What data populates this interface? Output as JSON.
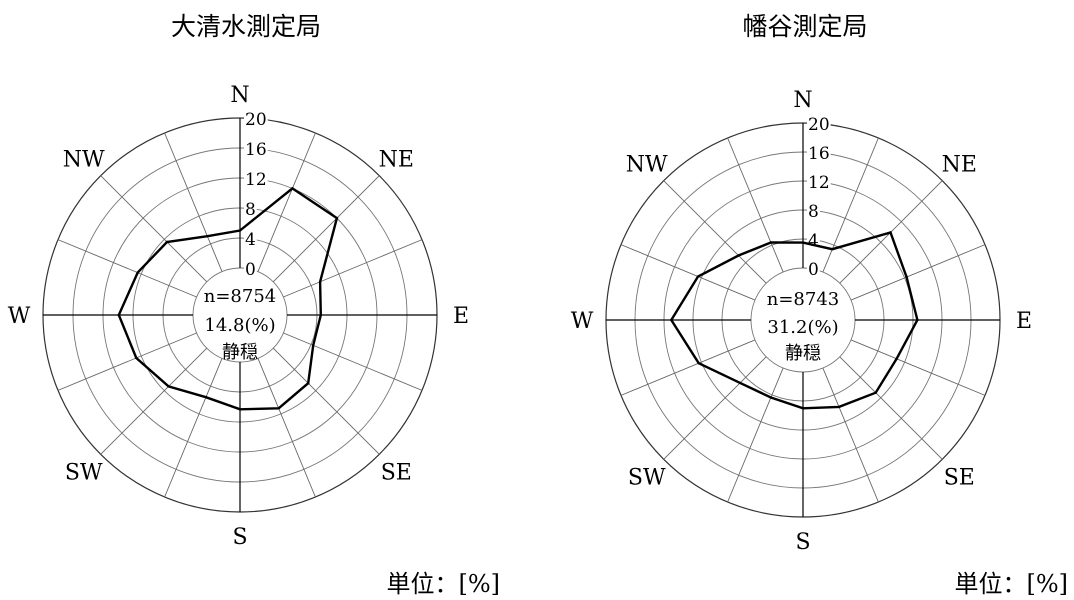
{
  "chart_data": [
    {
      "type": "radar",
      "title": "大清水測定局",
      "directions": [
        "N",
        "NNE",
        "NE",
        "ENE",
        "E",
        "ESE",
        "SE",
        "SSE",
        "S",
        "SSW",
        "SW",
        "WSW",
        "W",
        "WNW",
        "NW",
        "NNW"
      ],
      "direction_labels": [
        "N",
        "NE",
        "E",
        "SE",
        "S",
        "SW",
        "W",
        "NW"
      ],
      "values": [
        5.0,
        12.0,
        12.0,
        5.3,
        4.5,
        4.3,
        6.6,
        7.2,
        6.3,
        5.6,
        7.2,
        8.7,
        9.9,
        8.5,
        7.5,
        5.1
      ],
      "rlim": [
        0,
        20
      ],
      "rticks": [
        0,
        4,
        8,
        12,
        16,
        20
      ],
      "rtick_labels": [
        "0",
        "4",
        "8",
        "12",
        "16",
        "20"
      ],
      "center_text": [
        "n=8754",
        "14.8(%)",
        "静穏"
      ],
      "unit_label": "単位：[%]",
      "line_color": "#000000"
    },
    {
      "type": "radar",
      "title": "幡谷測定局",
      "directions": [
        "N",
        "NNE",
        "NE",
        "ENE",
        "E",
        "ESE",
        "SE",
        "SSE",
        "S",
        "SSW",
        "SW",
        "WSW",
        "W",
        "WNW",
        "NW",
        "NNW"
      ],
      "direction_labels": [
        "N",
        "NE",
        "E",
        "SE",
        "S",
        "SW",
        "W",
        "NW"
      ],
      "values": [
        3.5,
        3.4,
        9.9,
        8.3,
        8.6,
        6.8,
        7.0,
        5.8,
        5.0,
        4.4,
        5.1,
        8.4,
        11.0,
        8.5,
        5.4,
        4.4
      ],
      "rlim": [
        0,
        20
      ],
      "rticks": [
        0,
        4,
        8,
        12,
        16,
        20
      ],
      "rtick_labels": [
        "0",
        "4",
        "8",
        "12",
        "16",
        "20"
      ],
      "center_text": [
        "n=8743",
        "31.2(%)",
        "静穏"
      ],
      "unit_label": "単位：[%]",
      "line_color": "#000000"
    }
  ]
}
